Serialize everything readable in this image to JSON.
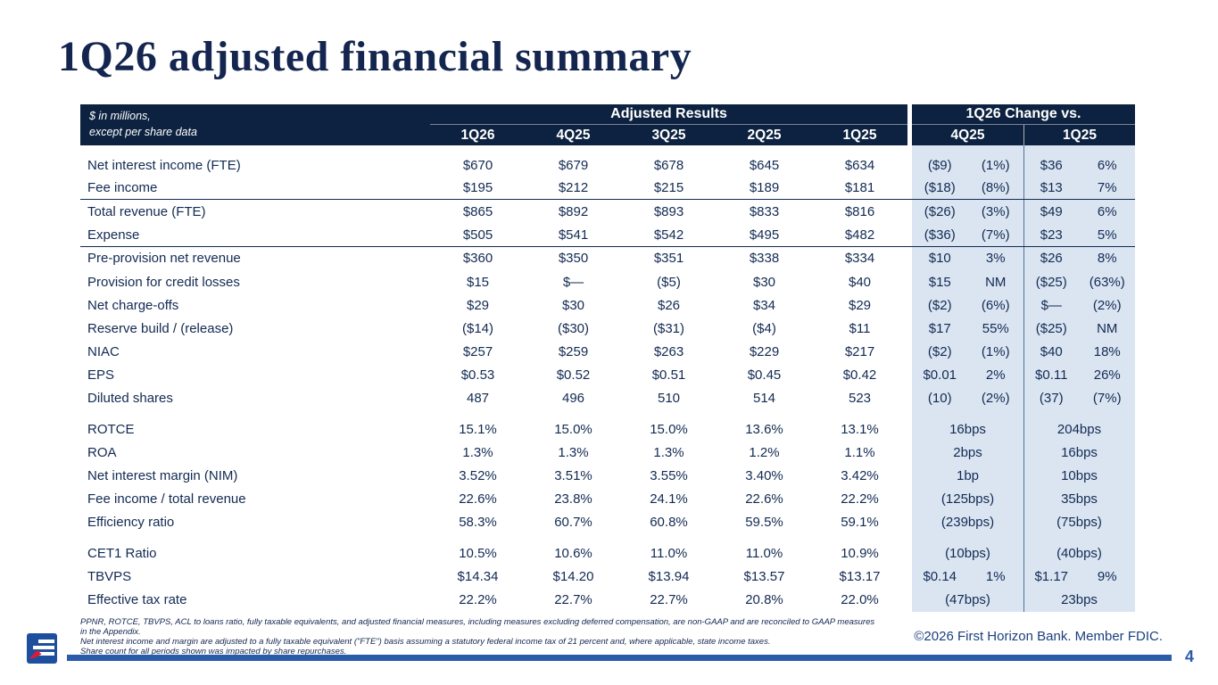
{
  "slide": {
    "title": "1Q26 adjusted financial summary",
    "page_number": "4",
    "copyright": "©2026 First Horizon Bank. Member FDIC."
  },
  "colors": {
    "header_navy": "#0d2240",
    "text_navy": "#122a52",
    "change_area_light_blue": "#dbe5f2",
    "accent_blue": "#2a5caa",
    "logo_red": "#e31837"
  },
  "table": {
    "unit_note_line1": "$ in millions,",
    "unit_note_line2": "except per share data",
    "adjusted_results_header": "Adjusted Results",
    "change_header": "1Q26 Change vs.",
    "period_columns": [
      "1Q26",
      "4Q25",
      "3Q25",
      "2Q25",
      "1Q25"
    ],
    "change_columns": [
      "4Q25",
      "1Q25"
    ],
    "rows": [
      {
        "label": "Net interest income (FTE)",
        "values": [
          "$670",
          "$679",
          "$678",
          "$645",
          "$634"
        ],
        "chg_4q25": [
          "($9)",
          "(1%)"
        ],
        "chg_1q25": [
          "$36",
          "6%"
        ]
      },
      {
        "label": "Fee income",
        "values": [
          "$195",
          "$212",
          "$215",
          "$189",
          "$181"
        ],
        "chg_4q25": [
          "($18)",
          "(8%)"
        ],
        "chg_1q25": [
          "$13",
          "7%"
        ],
        "rule": true
      },
      {
        "label": "Total revenue (FTE)",
        "values": [
          "$865",
          "$892",
          "$893",
          "$833",
          "$816"
        ],
        "chg_4q25": [
          "($26)",
          "(3%)"
        ],
        "chg_1q25": [
          "$49",
          "6%"
        ]
      },
      {
        "label": "Expense",
        "values": [
          "$505",
          "$541",
          "$542",
          "$495",
          "$482"
        ],
        "chg_4q25": [
          "($36)",
          "(7%)"
        ],
        "chg_1q25": [
          "$23",
          "5%"
        ],
        "rule": true
      },
      {
        "label": "Pre-provision net revenue",
        "values": [
          "$360",
          "$350",
          "$351",
          "$338",
          "$334"
        ],
        "chg_4q25": [
          "$10",
          "3%"
        ],
        "chg_1q25": [
          "$26",
          "8%"
        ]
      },
      {
        "label": "Provision for credit losses",
        "values": [
          "$15",
          "$—",
          "($5)",
          "$30",
          "$40"
        ],
        "chg_4q25": [
          "$15",
          "NM"
        ],
        "chg_1q25": [
          "($25)",
          "(63%)"
        ]
      },
      {
        "label": "Net charge-offs",
        "values": [
          "$29",
          "$30",
          "$26",
          "$34",
          "$29"
        ],
        "chg_4q25": [
          "($2)",
          "(6%)"
        ],
        "chg_1q25": [
          "$—",
          "(2%)"
        ]
      },
      {
        "label": "Reserve build / (release)",
        "values": [
          "($14)",
          "($30)",
          "($31)",
          "($4)",
          "$11"
        ],
        "chg_4q25": [
          "$17",
          "55%"
        ],
        "chg_1q25": [
          "($25)",
          "NM"
        ]
      },
      {
        "label": "NIAC",
        "values": [
          "$257",
          "$259",
          "$263",
          "$229",
          "$217"
        ],
        "chg_4q25": [
          "($2)",
          "(1%)"
        ],
        "chg_1q25": [
          "$40",
          "18%"
        ]
      },
      {
        "label": "EPS",
        "values": [
          "$0.53",
          "$0.52",
          "$0.51",
          "$0.45",
          "$0.42"
        ],
        "chg_4q25": [
          "$0.01",
          "2%"
        ],
        "chg_1q25": [
          "$0.11",
          "26%"
        ]
      },
      {
        "label": "Diluted shares",
        "values": [
          "487",
          "496",
          "510",
          "514",
          "523"
        ],
        "chg_4q25": [
          "(10)",
          "(2%)"
        ],
        "chg_1q25": [
          "(37)",
          "(7%)"
        ]
      },
      {
        "label": "ROTCE",
        "values": [
          "15.1%",
          "15.0%",
          "15.0%",
          "13.6%",
          "13.1%"
        ],
        "chg_4q25": [
          "16bps"
        ],
        "chg_1q25": [
          "204bps"
        ],
        "gap": true
      },
      {
        "label": "ROA",
        "values": [
          "1.3%",
          "1.3%",
          "1.3%",
          "1.2%",
          "1.1%"
        ],
        "chg_4q25": [
          "2bps"
        ],
        "chg_1q25": [
          "16bps"
        ]
      },
      {
        "label": "Net interest margin (NIM)",
        "values": [
          "3.52%",
          "3.51%",
          "3.55%",
          "3.40%",
          "3.42%"
        ],
        "chg_4q25": [
          "1bp"
        ],
        "chg_1q25": [
          "10bps"
        ]
      },
      {
        "label": "Fee income / total revenue",
        "values": [
          "22.6%",
          "23.8%",
          "24.1%",
          "22.6%",
          "22.2%"
        ],
        "chg_4q25": [
          "(125bps)"
        ],
        "chg_1q25": [
          "35bps"
        ]
      },
      {
        "label": "Efficiency ratio",
        "values": [
          "58.3%",
          "60.7%",
          "60.8%",
          "59.5%",
          "59.1%"
        ],
        "chg_4q25": [
          "(239bps)"
        ],
        "chg_1q25": [
          "(75bps)"
        ]
      },
      {
        "label": "CET1 Ratio",
        "values": [
          "10.5%",
          "10.6%",
          "11.0%",
          "11.0%",
          "10.9%"
        ],
        "chg_4q25": [
          "(10bps)"
        ],
        "chg_1q25": [
          "(40bps)"
        ],
        "gap": true
      },
      {
        "label": "TBVPS",
        "values": [
          "$14.34",
          "$14.20",
          "$13.94",
          "$13.57",
          "$13.17"
        ],
        "chg_4q25": [
          "$0.14",
          "1%"
        ],
        "chg_1q25": [
          "$1.17",
          "9%"
        ]
      },
      {
        "label": "Effective tax rate",
        "values": [
          "22.2%",
          "22.7%",
          "22.7%",
          "20.8%",
          "22.0%"
        ],
        "chg_4q25": [
          "(47bps)"
        ],
        "chg_1q25": [
          "23bps"
        ]
      }
    ]
  },
  "footnotes": [
    "PPNR, ROTCE, TBVPS, ACL to loans ratio, fully taxable equivalents, and adjusted financial measures, including measures excluding deferred compensation, are non-GAAP and are reconciled to GAAP measures in the Appendix.",
    "Net interest income and margin are adjusted to a fully taxable equivalent (\"FTE\") basis assuming a statutory federal income tax of 21 percent and, where applicable, state income taxes.",
    "Share count for all periods shown was impacted by share repurchases."
  ]
}
